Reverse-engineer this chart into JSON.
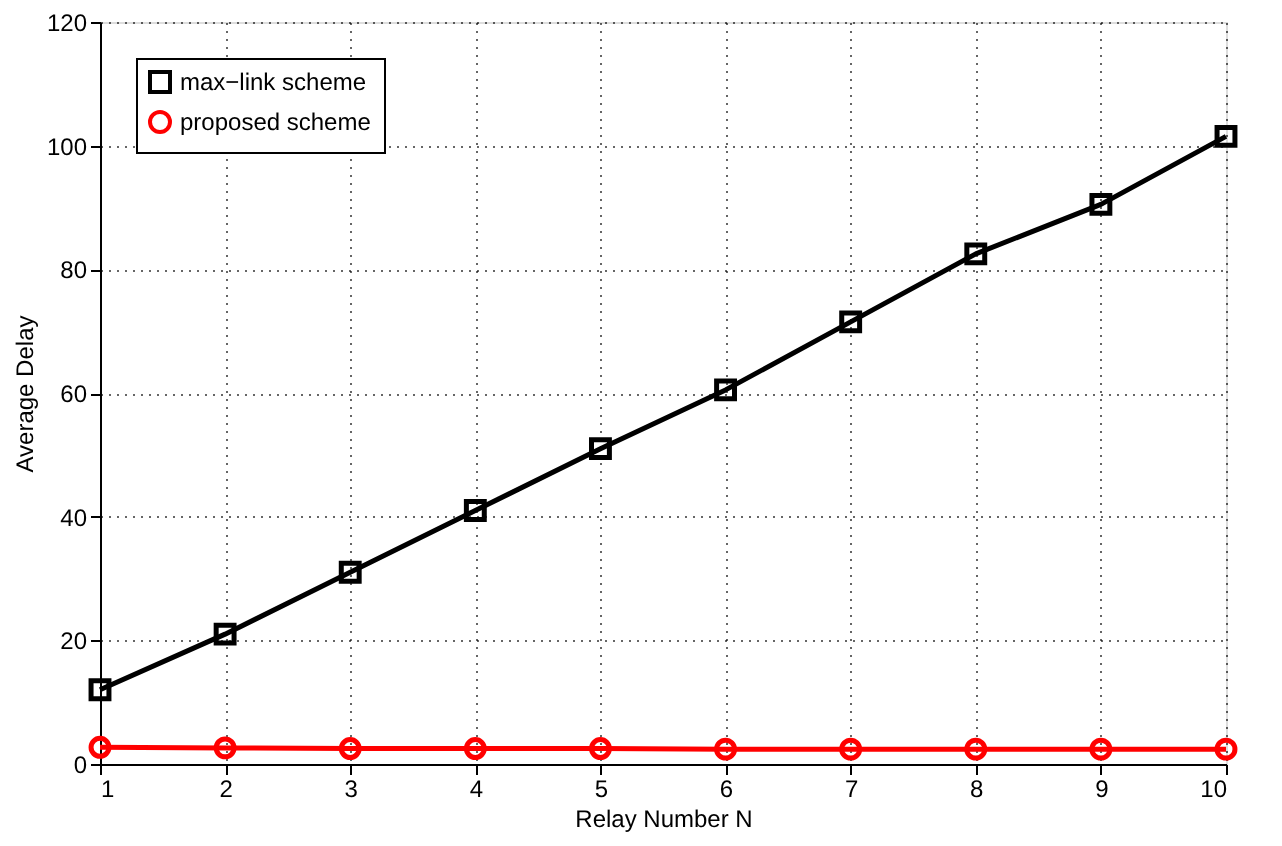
{
  "chart_data": {
    "type": "line",
    "xlabel": "Relay Number N",
    "ylabel": "Average Delay",
    "x": [
      1,
      2,
      3,
      4,
      5,
      6,
      7,
      8,
      9,
      10
    ],
    "series": [
      {
        "name": "max−link scheme",
        "color": "#000000",
        "marker": "square",
        "values": [
          12,
          21,
          31,
          41,
          51,
          60.5,
          71.5,
          82.5,
          90.5,
          101.5
        ]
      },
      {
        "name": "proposed scheme",
        "color": "#ff0000",
        "marker": "circle",
        "values": [
          2.7,
          2.6,
          2.5,
          2.5,
          2.5,
          2.4,
          2.4,
          2.4,
          2.4,
          2.4
        ]
      }
    ],
    "xlim": [
      1,
      10
    ],
    "xticks": [
      1,
      2,
      3,
      4,
      5,
      6,
      7,
      8,
      9,
      10
    ],
    "ylim": [
      0,
      120
    ],
    "yticks": [
      0,
      20,
      40,
      60,
      80,
      100,
      120
    ],
    "grid": true,
    "legend": "top left",
    "line_style": "solid"
  }
}
